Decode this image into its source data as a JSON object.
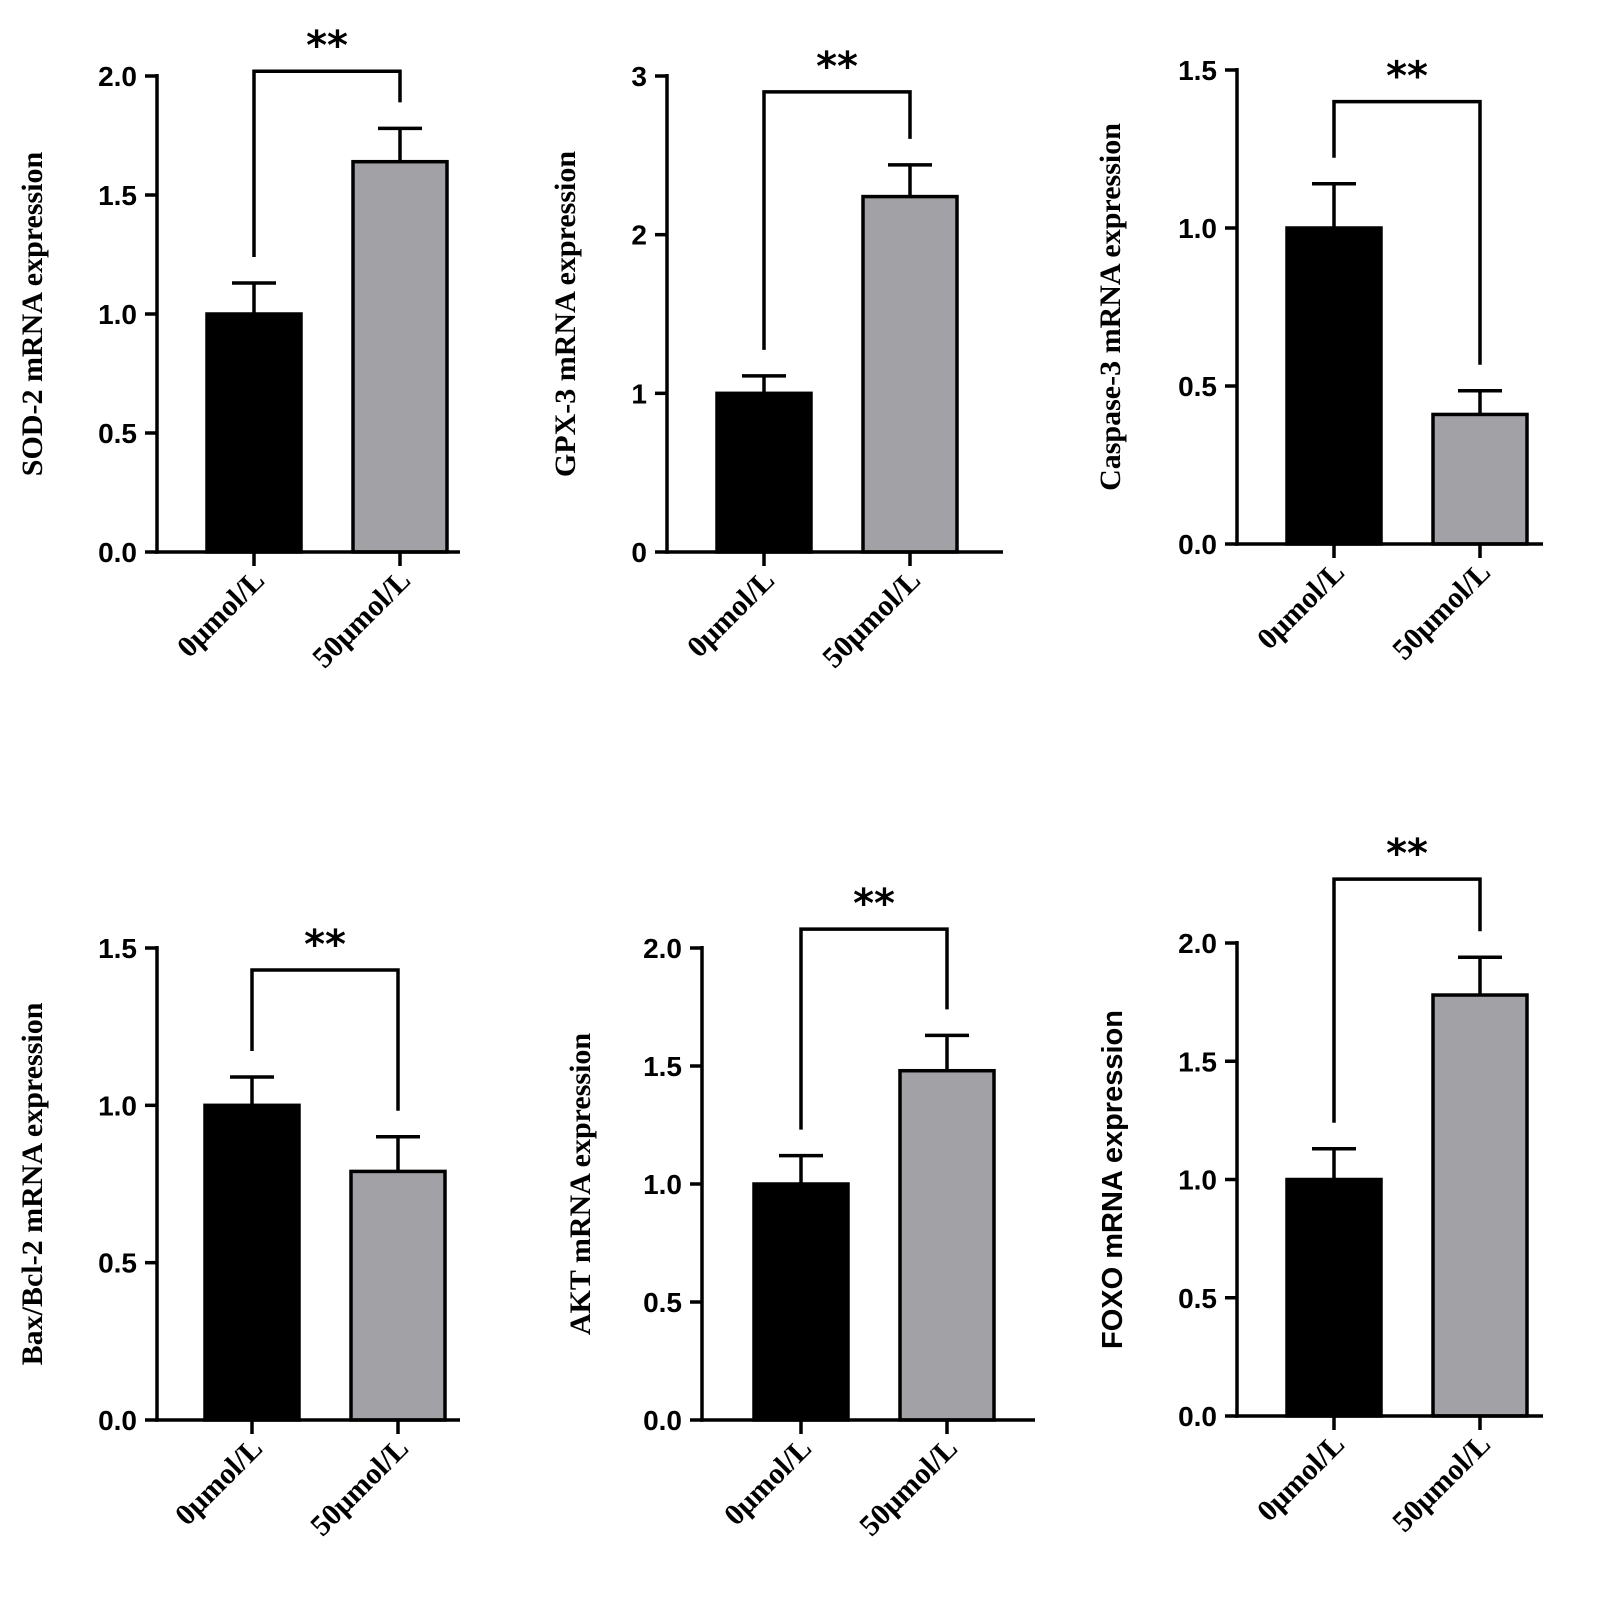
{
  "chart_data": [
    {
      "type": "bar",
      "ylabel": "SOD-2 mRNA expression",
      "ylabel_style": "serif",
      "categories": [
        "0μmol/L",
        "50μmol/L"
      ],
      "values": [
        1.0,
        1.64
      ],
      "errors": [
        0.13,
        0.14
      ],
      "colors": [
        "#000000",
        "#a2a2a6"
      ],
      "ylim": [
        0,
        2.0
      ],
      "yticks": [
        0.0,
        0.5,
        1.0,
        1.5,
        2.0
      ],
      "ytick_labels": [
        "0.0",
        "0.5",
        "1.0",
        "1.5",
        "2.0"
      ],
      "significance": "**",
      "bracket_top": 2.02
    },
    {
      "type": "bar",
      "ylabel": "GPX-3 mRNA expression",
      "ylabel_style": "serif",
      "categories": [
        "0μmol/L",
        "50μmol/L"
      ],
      "values": [
        1.0,
        2.24
      ],
      "errors": [
        0.11,
        0.2
      ],
      "colors": [
        "#000000",
        "#a2a2a6"
      ],
      "ylim": [
        0,
        3
      ],
      "yticks": [
        0,
        1,
        2,
        3
      ],
      "ytick_labels": [
        "0",
        "1",
        "2",
        "3"
      ],
      "significance": "**",
      "bracket_top": 2.9
    },
    {
      "type": "bar",
      "ylabel": "Caspase-3 mRNA expression",
      "ylabel_style": "serif",
      "categories": [
        "0μmol/L",
        "50μmol/L"
      ],
      "values": [
        1.0,
        0.41
      ],
      "errors": [
        0.14,
        0.075
      ],
      "colors": [
        "#000000",
        "#a2a2a6"
      ],
      "ylim": [
        0,
        1.5
      ],
      "yticks": [
        0.0,
        0.5,
        1.0,
        1.5
      ],
      "ytick_labels": [
        "0.0",
        "0.5",
        "1.0",
        "1.5"
      ],
      "significance": "**",
      "bracket_top": 1.4
    },
    {
      "type": "bar",
      "ylabel": "Bax/Bcl-2 mRNA expression",
      "ylabel_style": "serif",
      "categories": [
        "0μmol/L",
        "50μmol/L"
      ],
      "values": [
        1.0,
        0.79
      ],
      "errors": [
        0.09,
        0.11
      ],
      "colors": [
        "#000000",
        "#a2a2a6"
      ],
      "ylim": [
        0,
        1.5
      ],
      "yticks": [
        0.0,
        0.5,
        1.0,
        1.5
      ],
      "ytick_labels": [
        "0.0",
        "0.5",
        "1.0",
        "1.5"
      ],
      "significance": "**",
      "bracket_top": 1.43
    },
    {
      "type": "bar",
      "ylabel": "AKT mRNA expression",
      "ylabel_style": "serif",
      "categories": [
        "0μmol/L",
        "50μmol/L"
      ],
      "values": [
        1.0,
        1.48
      ],
      "errors": [
        0.12,
        0.15
      ],
      "colors": [
        "#000000",
        "#a2a2a6"
      ],
      "ylim": [
        0,
        2.0
      ],
      "yticks": [
        0.0,
        0.5,
        1.0,
        1.5,
        2.0
      ],
      "ytick_labels": [
        "0.0",
        "0.5",
        "1.0",
        "1.5",
        "2.0"
      ],
      "significance": "**",
      "bracket_top": 2.08
    },
    {
      "type": "bar",
      "ylabel": "FOXO mRNA expression",
      "ylabel_style": "sans",
      "categories": [
        "0μmol/L",
        "50μmol/L"
      ],
      "values": [
        1.0,
        1.78
      ],
      "errors": [
        0.13,
        0.16
      ],
      "colors": [
        "#000000",
        "#a2a2a6"
      ],
      "ylim": [
        0,
        2.0
      ],
      "yticks": [
        0.0,
        0.5,
        1.0,
        1.5,
        2.0
      ],
      "ytick_labels": [
        "0.0",
        "0.5",
        "1.0",
        "1.5",
        "2.0"
      ],
      "significance": "**",
      "bracket_top": 2.27
    }
  ]
}
